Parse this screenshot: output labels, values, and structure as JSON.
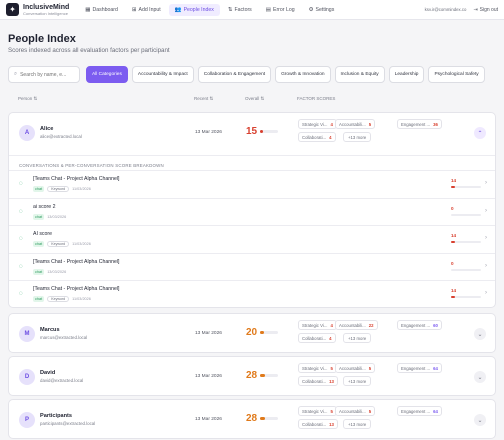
{
  "app": {
    "name": "InclusiveMind",
    "subtitle": "Conversation Intelligence"
  },
  "nav": [
    {
      "icon": "dashboard-icon",
      "glyph": "▦",
      "label": "Dashboard",
      "active": false
    },
    {
      "icon": "add-icon",
      "glyph": "⊞",
      "label": "Add Input",
      "active": false
    },
    {
      "icon": "people-icon",
      "glyph": "👥",
      "label": "People Index",
      "active": true
    },
    {
      "icon": "factors-icon",
      "glyph": "⇅",
      "label": "Factors",
      "active": false
    },
    {
      "icon": "error-log-icon",
      "glyph": "▤",
      "label": "Error Log",
      "active": false
    },
    {
      "icon": "settings-icon",
      "glyph": "⚙",
      "label": "Settings",
      "active": false
    }
  ],
  "user_email": "ksv.ir@commindex.co",
  "signout_label": "Sign out",
  "page": {
    "title": "People Index",
    "subtitle": "Scores indexed across all evaluation factors per participant"
  },
  "search": {
    "placeholder": "Search by name, e..."
  },
  "categories": [
    "All Categories",
    "Accountability & Impact",
    "Collaboration & Engagement",
    "Growth & Innovation",
    "Inclusion & Equity",
    "Leadership",
    "Psychological Safety"
  ],
  "columns": {
    "person": "Person ⇅",
    "recent": "Recent ⇅",
    "overall": "Overall ⇅",
    "factors": "FACTOR SCORES"
  },
  "colors": {
    "accent": "#7c5cf0",
    "red": "#d8402f",
    "orange": "#e07a1b",
    "green": "#2fae6c"
  },
  "people": [
    {
      "initial": "A",
      "name": "Alice",
      "email": "alice@extracted.local",
      "recent": "13 Mar 2026",
      "overall": 15,
      "overall_pct": 0.15,
      "expanded": true,
      "factors_row1": [
        {
          "label": "Strategic Vi...",
          "value": "4",
          "color": "red"
        },
        {
          "label": "Accountabili...",
          "value": "5",
          "color": "red"
        },
        {
          "label": "Engagement ...",
          "value": "36",
          "color": "red"
        }
      ],
      "factors_row2": [
        {
          "label": "Collaborati...",
          "value": "4",
          "color": "red"
        }
      ],
      "more": "+13 more"
    },
    {
      "initial": "M",
      "name": "Marcus",
      "email": "marcus@extracted.local",
      "recent": "13 Mar 2026",
      "overall": 20,
      "overall_pct": 0.2,
      "expanded": false,
      "factors_row1": [
        {
          "label": "Strategic Vi...",
          "value": "4",
          "color": "red"
        },
        {
          "label": "Accountabili...",
          "value": "22",
          "color": "red"
        },
        {
          "label": "Engagement ...",
          "value": "60",
          "color": "purple"
        }
      ],
      "factors_row2": [
        {
          "label": "Collaborati...",
          "value": "4",
          "color": "red"
        }
      ],
      "more": "+13 more"
    },
    {
      "initial": "D",
      "name": "David",
      "email": "david@extracted.local",
      "recent": "13 Mar 2026",
      "overall": 28,
      "overall_pct": 0.28,
      "expanded": false,
      "factors_row1": [
        {
          "label": "Strategic Vi...",
          "value": "5",
          "color": "red"
        },
        {
          "label": "Accountabili...",
          "value": "5",
          "color": "red"
        },
        {
          "label": "Engagement ...",
          "value": "64",
          "color": "purple"
        }
      ],
      "factors_row2": [
        {
          "label": "Collaborati...",
          "value": "13",
          "color": "red"
        }
      ],
      "more": "+13 more"
    },
    {
      "initial": "P",
      "name": "Participants",
      "email": "participants@extracted.local",
      "recent": "13 Mar 2026",
      "overall": 28,
      "overall_pct": 0.28,
      "expanded": false,
      "factors_row1": [
        {
          "label": "Strategic Vi...",
          "value": "5",
          "color": "red"
        },
        {
          "label": "Accountabili...",
          "value": "5",
          "color": "red"
        },
        {
          "label": "Engagement ...",
          "value": "64",
          "color": "purple"
        }
      ],
      "factors_row2": [
        {
          "label": "Collaborati...",
          "value": "13",
          "color": "red"
        }
      ],
      "more": "+13 more"
    }
  ],
  "conversations_header": "CONVERSATIONS & PER-CONVERSATION SCORE BREAKDOWN",
  "conversations": [
    {
      "title": "[Teams Chat - Project Alpha Channel]",
      "badge": "chat",
      "keyword": "Keyword",
      "date": "11/03/2026",
      "score": 14,
      "pct": 0.14,
      "color": "red"
    },
    {
      "title": "ai score 2",
      "badge": "chat",
      "keyword": "",
      "date": "13/03/2026",
      "score": 0,
      "pct": 0.0,
      "color": "red"
    },
    {
      "title": "AI score",
      "badge": "chat",
      "keyword": "Keyword",
      "date": "11/03/2026",
      "score": 14,
      "pct": 0.14,
      "color": "red"
    },
    {
      "title": "[Teams Chat - Project Alpha Channel]",
      "badge": "chat",
      "keyword": "",
      "date": "13/03/2026",
      "score": 0,
      "pct": 0.0,
      "color": "red"
    },
    {
      "title": "[Teams Chat - Project Alpha Channel]",
      "badge": "chat",
      "keyword": "Keyword",
      "date": "11/03/2026",
      "score": 14,
      "pct": 0.14,
      "color": "red"
    }
  ]
}
